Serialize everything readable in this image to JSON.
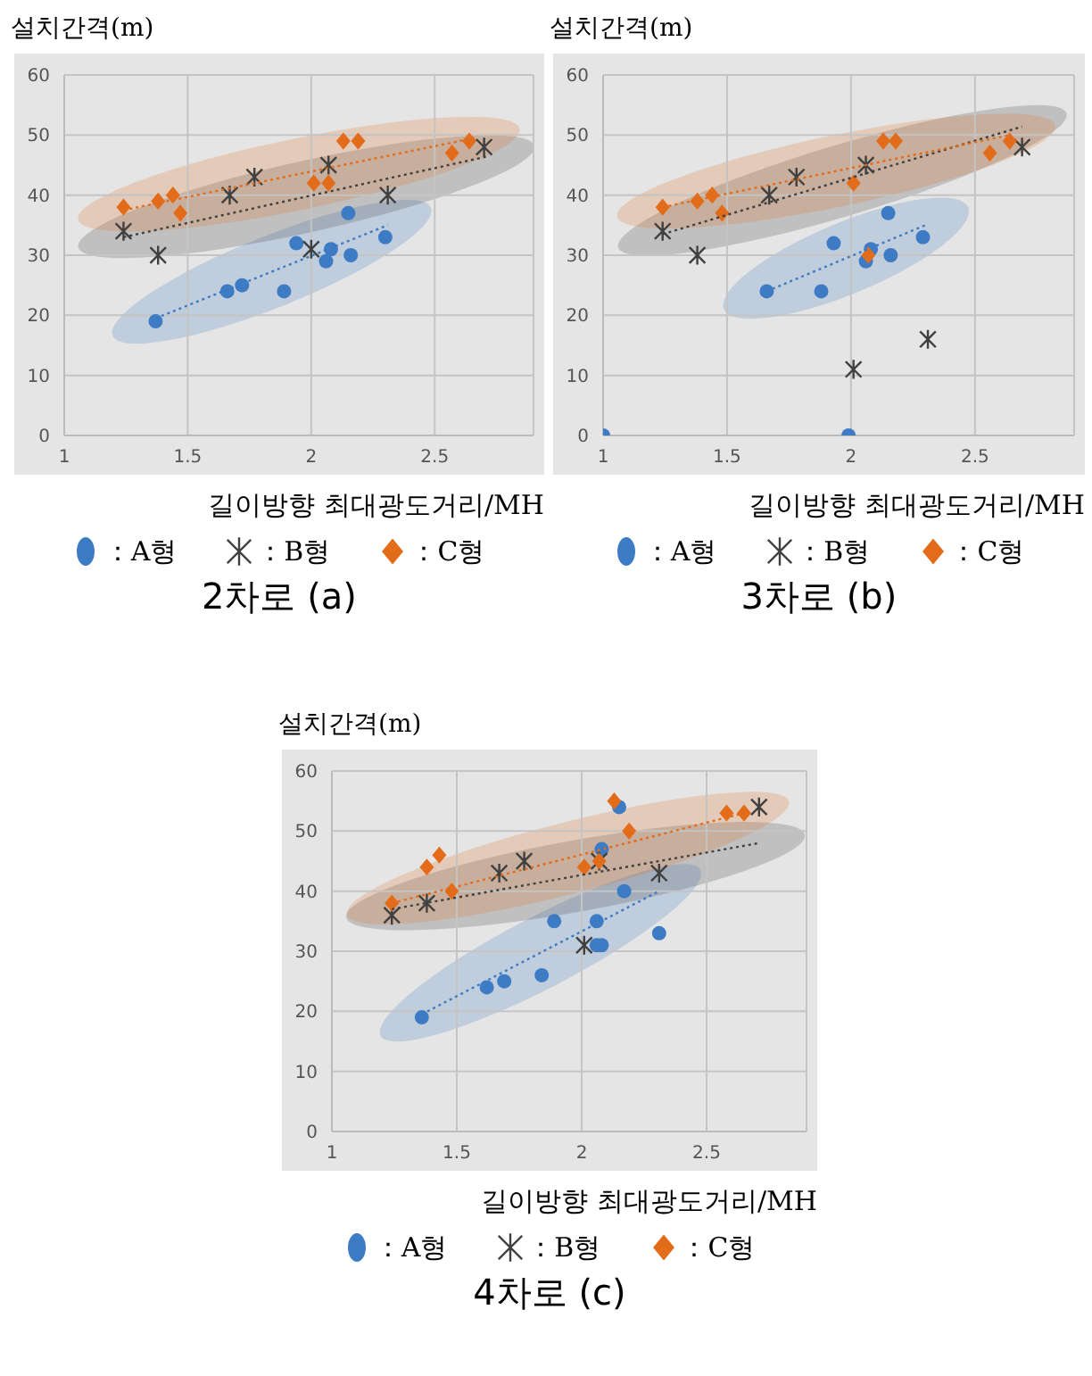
{
  "chart_data": [
    {
      "type": "scatter",
      "title": "2차로 (a)",
      "xlabel": "길이방향 최대광도거리/MH",
      "ylabel": "설치간격(m)",
      "xlim": [
        1,
        2.9
      ],
      "xticks": [
        1,
        1.5,
        2,
        2.5
      ],
      "ylim": [
        0,
        60
      ],
      "yticks": [
        0,
        10,
        20,
        30,
        40,
        50,
        60
      ],
      "grid": true,
      "legend": "bottom",
      "series": [
        {
          "name": "：A형",
          "color": "#3d7cc4",
          "marker": "circle",
          "x": [
            1.37,
            1.66,
            1.72,
            1.89,
            1.94,
            2.06,
            2.08,
            2.15,
            2.16,
            2.3
          ],
          "values": [
            19,
            24,
            25,
            24,
            32,
            29,
            31,
            37,
            30,
            33
          ]
        },
        {
          "name": "：B형",
          "color": "#404040",
          "marker": "cross",
          "x": [
            1.24,
            1.38,
            1.67,
            1.77,
            2.0,
            2.07,
            2.31,
            2.7
          ],
          "values": [
            34,
            30,
            40,
            43,
            31,
            45,
            40,
            48
          ]
        },
        {
          "name": "：C형",
          "color": "#e36c1a",
          "marker": "diamond",
          "x": [
            1.24,
            1.38,
            1.44,
            1.47,
            2.01,
            2.07,
            2.13,
            2.19,
            2.57,
            2.64
          ],
          "values": [
            38,
            39,
            40,
            37,
            42,
            42,
            49,
            49,
            47,
            49
          ]
        },
        {
          "type": "line",
          "color": "#3d7cc4",
          "line_style": "dotted",
          "marker": "none",
          "x": [
            1.37,
            2.31
          ],
          "values": [
            19.5,
            35
          ]
        },
        {
          "type": "line",
          "color": "#404040",
          "line_style": "dotted",
          "marker": "none",
          "x": [
            1.24,
            2.72
          ],
          "values": [
            33,
            46.5
          ]
        },
        {
          "type": "line",
          "color": "#e36c1a",
          "line_style": "dotted",
          "marker": "none",
          "x": [
            1.24,
            2.66
          ],
          "values": [
            37.5,
            49.5
          ]
        }
      ]
    },
    {
      "type": "scatter",
      "title": "3차로 (b)",
      "xlabel": "길이방향 최대광도거리/MH",
      "ylabel": "설치간격(m)",
      "xlim": [
        1,
        2.9
      ],
      "xticks": [
        1,
        1.5,
        2,
        2.5
      ],
      "ylim": [
        0,
        60
      ],
      "yticks": [
        0,
        10,
        20,
        30,
        40,
        50,
        60
      ],
      "grid": true,
      "legend": "bottom",
      "series": [
        {
          "name": "：A형",
          "color": "#3d7cc4",
          "marker": "circle",
          "x": [
            1.0,
            1.99,
            1.66,
            1.88,
            1.93,
            2.06,
            2.08,
            2.15,
            2.16,
            2.29
          ],
          "values": [
            0,
            0,
            24,
            24,
            32,
            29,
            31,
            37,
            30,
            33
          ]
        },
        {
          "name": "：B형",
          "color": "#404040",
          "marker": "cross",
          "x": [
            1.24,
            1.38,
            1.67,
            1.78,
            2.01,
            2.06,
            2.31,
            2.69
          ],
          "values": [
            34,
            30,
            40,
            43,
            11,
            45,
            16,
            48
          ]
        },
        {
          "name": "：C형",
          "color": "#e36c1a",
          "marker": "diamond",
          "x": [
            1.24,
            1.38,
            1.44,
            1.48,
            2.01,
            2.07,
            2.13,
            2.18,
            2.56,
            2.64
          ],
          "values": [
            38,
            39,
            40,
            37,
            42,
            30,
            49,
            49,
            47,
            49
          ]
        },
        {
          "type": "line",
          "color": "#3d7cc4",
          "line_style": "dotted",
          "marker": "none",
          "x": [
            1.66,
            2.3
          ],
          "values": [
            24,
            35
          ]
        },
        {
          "type": "line",
          "color": "#404040",
          "line_style": "dotted",
          "marker": "none",
          "x": [
            1.24,
            2.69
          ],
          "values": [
            33.5,
            51.4
          ]
        },
        {
          "type": "line",
          "color": "#e36c1a",
          "line_style": "dotted",
          "marker": "none",
          "x": [
            1.24,
            2.64
          ],
          "values": [
            38,
            50
          ]
        }
      ]
    },
    {
      "type": "scatter",
      "title": "4차로 (c)",
      "xlabel": "길이방향 최대광도거리/MH",
      "ylabel": "설치간격(m)",
      "xlim": [
        1,
        2.9
      ],
      "xticks": [
        1,
        1.5,
        2,
        2.5
      ],
      "ylim": [
        0,
        60
      ],
      "yticks": [
        0,
        10,
        20,
        30,
        40,
        50,
        60
      ],
      "grid": true,
      "legend": "bottom",
      "series": [
        {
          "name": "：A형",
          "color": "#3d7cc4",
          "marker": "circle",
          "x": [
            1.36,
            1.62,
            1.69,
            1.84,
            1.89,
            2.06,
            2.08,
            2.06,
            2.08,
            2.15,
            2.17,
            2.31
          ],
          "values": [
            19,
            24,
            25,
            26,
            35,
            31,
            31,
            35,
            47,
            54,
            40,
            33
          ]
        },
        {
          "name": "：B형",
          "color": "#404040",
          "marker": "cross",
          "x": [
            1.24,
            1.38,
            1.67,
            1.77,
            2.01,
            2.07,
            2.31,
            2.71
          ],
          "values": [
            36,
            38,
            43,
            45,
            31,
            45,
            43,
            54
          ]
        },
        {
          "name": "：C형",
          "color": "#e36c1a",
          "marker": "diamond",
          "x": [
            1.24,
            1.38,
            1.43,
            1.48,
            2.01,
            2.07,
            2.13,
            2.19,
            2.58,
            2.65
          ],
          "values": [
            38,
            44,
            46,
            40,
            44,
            45,
            55,
            50,
            53,
            53
          ]
        },
        {
          "type": "line",
          "color": "#3d7cc4",
          "line_style": "dotted",
          "marker": "none",
          "x": [
            1.36,
            2.31
          ],
          "values": [
            19.5,
            40
          ]
        },
        {
          "type": "line",
          "color": "#404040",
          "line_style": "dotted",
          "marker": "none",
          "x": [
            1.24,
            2.71
          ],
          "values": [
            37,
            48
          ]
        },
        {
          "type": "line",
          "color": "#e36c1a",
          "line_style": "dotted",
          "marker": "none",
          "x": [
            1.24,
            2.65
          ],
          "values": [
            38,
            53
          ]
        }
      ]
    }
  ]
}
